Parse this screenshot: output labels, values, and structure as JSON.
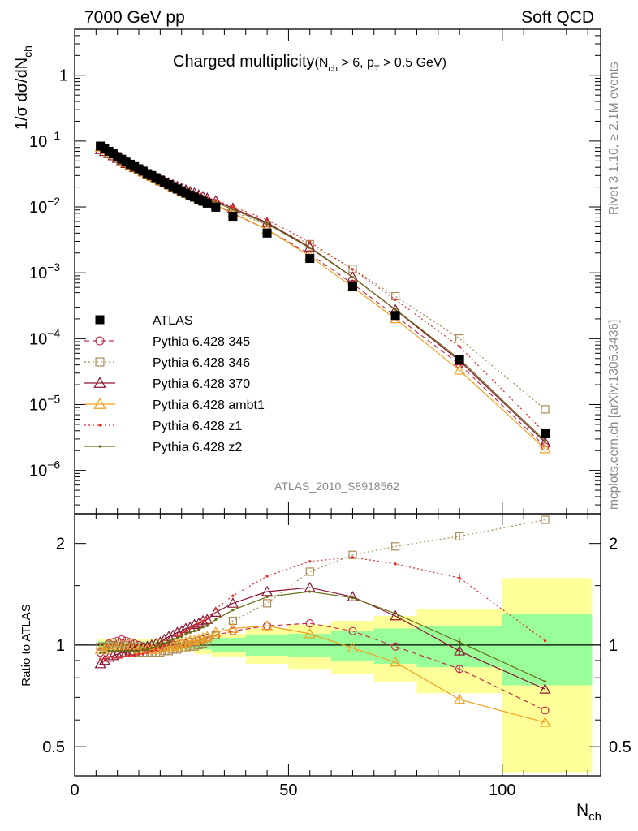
{
  "header": {
    "left": "7000 GeV pp",
    "right": "Soft QCD"
  },
  "side": {
    "top": "Rivet 3.1.10, ≥ 2.1M events",
    "bottom": "mcplots.cern.ch [arXiv:1306.3436]"
  },
  "watermark": "ATLAS_2010_S8918562",
  "chart_data": [
    {
      "type": "line",
      "panel": "main",
      "title_main": "Charged multiplicity",
      "title_cuts": {
        "open": "(N",
        "ch_sub": "ch",
        "mid": " > 6, p",
        "t_sub": "T",
        "end": " > 0.5 GeV)"
      },
      "ylabel": {
        "prefix": "1/σ dσ/dN",
        "sub": "ch"
      },
      "yscale": "log",
      "ylim": [
        2.2e-07,
        5.0
      ],
      "xlim": [
        0,
        123
      ],
      "y_ticks": [
        {
          "v": 1,
          "base": "1",
          "exp": ""
        },
        {
          "v": 0.1,
          "base": "10",
          "exp": "−1"
        },
        {
          "v": 0.01,
          "base": "10",
          "exp": "−2"
        },
        {
          "v": 0.001,
          "base": "10",
          "exp": "−3"
        },
        {
          "v": 0.0001,
          "base": "10",
          "exp": "−4"
        },
        {
          "v": 1e-05,
          "base": "10",
          "exp": "−5"
        },
        {
          "v": 1e-06,
          "base": "10",
          "exp": "−6"
        }
      ],
      "x": [
        6,
        7,
        8,
        9,
        10,
        11,
        12,
        13,
        14,
        15,
        16,
        17,
        18,
        19,
        20,
        21,
        22,
        23,
        24,
        25,
        26,
        27,
        28,
        29,
        30,
        31,
        33,
        37,
        45,
        55,
        65,
        75,
        90,
        110
      ],
      "atlas": [
        0.084,
        0.077,
        0.07,
        0.064,
        0.058,
        0.053,
        0.048,
        0.0445,
        0.041,
        0.038,
        0.035,
        0.032,
        0.03,
        0.0278,
        0.0256,
        0.0237,
        0.0219,
        0.0203,
        0.0188,
        0.0175,
        0.0162,
        0.0151,
        0.0141,
        0.0131,
        0.0122,
        0.0114,
        0.0099,
        0.0072,
        0.004,
        0.00165,
        0.00062,
        0.000225,
        4.8e-05,
        3.6e-06
      ],
      "legend_label": "ATLAS"
    },
    {
      "type": "line",
      "panel": "ratio",
      "ylabel": "Ratio to ATLAS",
      "yscale": "log",
      "ylim": [
        0.41,
        2.45
      ],
      "xlim": [
        0,
        123
      ],
      "xlabel": {
        "base": "N",
        "sub": "ch"
      },
      "x_ticks": [
        0,
        50,
        100
      ],
      "y_ticks": [
        0.5,
        1,
        2
      ],
      "bands": [
        {
          "x0": 5.5,
          "x1": 28,
          "inner": 0.025,
          "outer": 0.04
        },
        {
          "x0": 28,
          "x1": 32,
          "inner": 0.03,
          "outer": 0.06
        },
        {
          "x0": 32,
          "x1": 40,
          "inner": 0.05,
          "outer": 0.08
        },
        {
          "x0": 40,
          "x1": 50,
          "inner": 0.07,
          "outer": 0.12
        },
        {
          "x0": 50,
          "x1": 60,
          "inner": 0.08,
          "outer": 0.15
        },
        {
          "x0": 60,
          "x1": 70,
          "inner": 0.1,
          "outer": 0.18
        },
        {
          "x0": 70,
          "x1": 80,
          "inner": 0.12,
          "outer": 0.22
        },
        {
          "x0": 80,
          "x1": 100,
          "inner": 0.14,
          "outer": 0.28
        },
        {
          "x0": 100,
          "x1": 121,
          "inner": 0.24,
          "outer": 0.58
        }
      ],
      "series": [
        {
          "name": "Pythia 6.428 345",
          "style": "dash",
          "marker": "circle",
          "color": "#c0304a",
          "ratio": [
            0.95,
            0.99,
            1.01,
            1.02,
            1.03,
            1.04,
            1.03,
            1.02,
            1.01,
            1.0,
            0.99,
            0.98,
            0.98,
            0.98,
            0.98,
            0.99,
            1.0,
            1.0,
            1.0,
            1.01,
            1.01,
            1.02,
            1.02,
            1.03,
            1.04,
            1.05,
            1.07,
            1.1,
            1.14,
            1.16,
            1.1,
            0.99,
            0.85,
            0.64
          ]
        },
        {
          "name": "Pythia 6.428 346",
          "style": "dot",
          "marker": "square",
          "color": "#a98a55",
          "ratio": [
            0.99,
            0.99,
            1.0,
            0.99,
            0.98,
            0.98,
            0.97,
            0.96,
            0.95,
            0.95,
            0.95,
            0.95,
            0.95,
            0.95,
            0.95,
            0.96,
            0.96,
            0.97,
            0.97,
            0.98,
            0.98,
            0.99,
            0.99,
            1.0,
            1.01,
            1.03,
            1.07,
            1.18,
            1.33,
            1.65,
            1.85,
            1.96,
            2.1,
            2.35
          ]
        },
        {
          "name": "Pythia 6.428 370",
          "style": "solid",
          "marker": "triangle",
          "color": "#8a1530",
          "ratio": [
            0.88,
            0.9,
            0.92,
            0.93,
            0.94,
            0.95,
            0.95,
            0.96,
            0.96,
            0.97,
            0.98,
            0.99,
            1.0,
            1.01,
            1.02,
            1.04,
            1.06,
            1.07,
            1.09,
            1.1,
            1.12,
            1.13,
            1.15,
            1.16,
            1.18,
            1.19,
            1.25,
            1.33,
            1.44,
            1.48,
            1.39,
            1.22,
            0.96,
            0.74
          ]
        },
        {
          "name": "Pythia 6.428 ambt1",
          "style": "solid",
          "marker": "triangle",
          "color": "#f0a020",
          "ratio": [
            0.97,
            0.97,
            0.98,
            0.98,
            0.98,
            0.98,
            0.98,
            0.98,
            0.98,
            0.97,
            0.97,
            0.97,
            0.97,
            0.97,
            0.98,
            0.98,
            0.99,
            0.99,
            1.0,
            1.01,
            1.02,
            1.03,
            1.03,
            1.04,
            1.05,
            1.06,
            1.09,
            1.12,
            1.14,
            1.08,
            0.98,
            0.89,
            0.69,
            0.59
          ]
        },
        {
          "name": "Pythia 6.428 z1",
          "style": "dot",
          "marker": "dot",
          "color": "#e22b2b",
          "ratio": [
            0.91,
            0.91,
            0.92,
            0.92,
            0.92,
            0.92,
            0.93,
            0.93,
            0.93,
            0.94,
            0.94,
            0.95,
            0.96,
            0.97,
            0.98,
            1.0,
            1.02,
            1.04,
            1.06,
            1.08,
            1.1,
            1.12,
            1.14,
            1.16,
            1.18,
            1.2,
            1.28,
            1.4,
            1.6,
            1.77,
            1.82,
            1.74,
            1.58,
            1.03
          ]
        },
        {
          "name": "Pythia 6.428 z2",
          "style": "solid",
          "marker": "dot",
          "color": "#6b6b15",
          "ratio": [
            0.95,
            0.95,
            0.96,
            0.96,
            0.96,
            0.96,
            0.96,
            0.96,
            0.96,
            0.96,
            0.97,
            0.97,
            0.98,
            0.99,
            1.0,
            1.01,
            1.02,
            1.04,
            1.05,
            1.06,
            1.08,
            1.09,
            1.1,
            1.11,
            1.13,
            1.14,
            1.19,
            1.27,
            1.39,
            1.44,
            1.38,
            1.24,
            1.02,
            0.78
          ]
        }
      ]
    }
  ]
}
